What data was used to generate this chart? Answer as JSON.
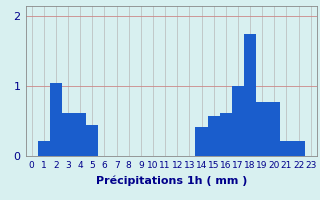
{
  "title": "",
  "xlabel": "Précipitations 1h ( mm )",
  "hours": [
    0,
    1,
    2,
    3,
    4,
    5,
    6,
    7,
    8,
    9,
    10,
    11,
    12,
    13,
    14,
    15,
    16,
    17,
    18,
    19,
    20,
    21,
    22,
    23
  ],
  "values": [
    0.0,
    0.22,
    1.05,
    0.62,
    0.62,
    0.45,
    0.0,
    0.0,
    0.0,
    0.0,
    0.0,
    0.0,
    0.0,
    0.0,
    0.42,
    0.58,
    0.62,
    1.0,
    1.75,
    0.78,
    0.78,
    0.22,
    0.22,
    0.0
  ],
  "bar_color": "#1a5dcc",
  "background_color": "#d8f0f0",
  "grid_color": "#b8b8b8",
  "text_color": "#00008b",
  "ylim": [
    0,
    2.15
  ],
  "yticks": [
    0,
    1,
    2
  ],
  "xlabel_fontsize": 8,
  "tick_fontsize": 6.5
}
